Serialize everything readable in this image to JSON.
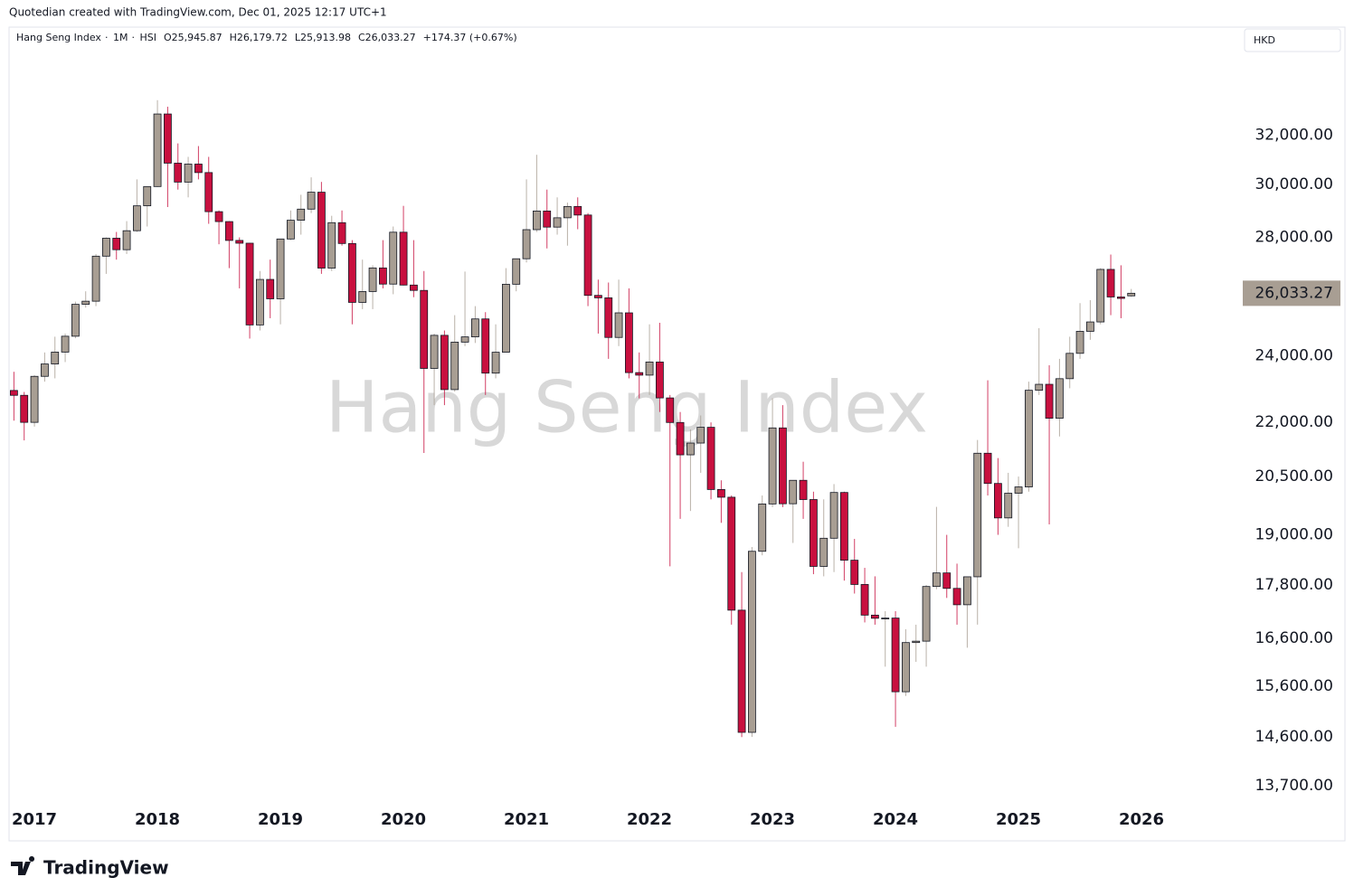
{
  "credit": "Quotedian created with TradingView.com, Dec 01, 2025 12:17 UTC+1",
  "brand": "TradingView",
  "currency": "HKD",
  "chart_data": {
    "type": "candlestick",
    "title": "Hang Seng Index",
    "interval": "1M",
    "symbol": "HSI",
    "header_values": [
      "O25,945.87",
      "H26,179.72",
      "L25,913.98",
      "C26,033.27",
      "+174.37 (+0.67%)"
    ],
    "log_scale": true,
    "up_color": "#a89e93",
    "down_color": "#c8103f",
    "ylim": [
      12750,
      36830
    ],
    "yticks": [
      {
        "value": 13700,
        "label": "13,700.00"
      },
      {
        "value": 14600,
        "label": "14,600.00"
      },
      {
        "value": 15600,
        "label": "15,600.00"
      },
      {
        "value": 16600,
        "label": "16,600.00"
      },
      {
        "value": 17800,
        "label": "17,800.00"
      },
      {
        "value": 19000,
        "label": "19,000.00"
      },
      {
        "value": 20500,
        "label": "20,500.00"
      },
      {
        "value": 22000,
        "label": "22,000.00"
      },
      {
        "value": 24000,
        "label": "24,000.00"
      },
      {
        "value": 28000,
        "label": "28,000.00"
      },
      {
        "value": 30000,
        "label": "30,000.00"
      },
      {
        "value": 32000,
        "label": "32,000.00"
      }
    ],
    "xticks": [
      2017,
      2018,
      2019,
      2020,
      2021,
      2022,
      2023,
      2024,
      2025,
      2026
    ],
    "last_label": "26,033.27",
    "open": [
      22935,
      22790,
      22001,
      23361,
      23741,
      24111,
      24615,
      25661,
      25765,
      27323,
      27970,
      27554,
      28245,
      29177,
      29919,
      32887,
      30845,
      30093,
      30808,
      30469,
      28955,
      28583,
      27889,
      27789,
      24980,
      26507,
      25846,
      27942,
      28633,
      29051,
      29699,
      26901,
      28543,
      27778,
      25725,
      26092,
      26907,
      26346,
      28190,
      26313,
      26130,
      23603,
      24644,
      22961,
      24427,
      24595,
      25177,
      23459,
      24107,
      26341,
      27231,
      28284,
      28980,
      28378,
      28725,
      29152,
      28828,
      25961,
      25879,
      24576,
      25377,
      23475,
      23398,
      23802,
      22713,
      21997,
      21089,
      21415,
      21860,
      20157,
      19955,
      17223,
      14687,
      18597,
      19781,
      21842,
      19786,
      20400,
      19895,
      18234,
      18916,
      20079,
      18382,
      17810,
      17112,
      17042,
      17047,
      15485,
      16511,
      16541,
      17763,
      18080,
      17719,
      17345,
      17989,
      21133,
      20317,
      19424,
      20060,
      20225,
      22941,
      23120,
      22119,
      23290,
      24072,
      24773,
      25078,
      26856,
      25907,
      25945.87
    ],
    "high": [
      23500,
      22890,
      23400,
      24100,
      24600,
      24700,
      25750,
      26100,
      27400,
      28000,
      28200,
      28600,
      30200,
      29900,
      33484,
      33200,
      31650,
      31100,
      31540,
      31100,
      29000,
      28600,
      28000,
      27800,
      26800,
      27200,
      27950,
      29000,
      29600,
      30280,
      30100,
      28800,
      29000,
      27900,
      27200,
      27000,
      27900,
      28400,
      29175,
      27900,
      26800,
      24700,
      24800,
      25300,
      26780,
      25600,
      25400,
      25000,
      26900,
      27200,
      30200,
      31183,
      29800,
      29500,
      29300,
      29500,
      28900,
      26500,
      26400,
      26500,
      26200,
      24100,
      25000,
      25050,
      22800,
      22300,
      21800,
      22200,
      22000,
      20400,
      20000,
      18100,
      18700,
      20000,
      22700,
      22500,
      20400,
      20900,
      20100,
      19900,
      20300,
      20100,
      18900,
      18200,
      18000,
      17200,
      17200,
      16800,
      16900,
      17800,
      19706,
      19000,
      18300,
      17900,
      21500,
      23241,
      21000,
      20600,
      20500,
      23200,
      24875,
      23700,
      23900,
      24600,
      25700,
      25800,
      26900,
      27381,
      27000,
      26179.72
    ],
    "low": [
      22050,
      21490,
      21880,
      23200,
      23300,
      23800,
      24550,
      25550,
      25600,
      26700,
      27200,
      27400,
      28200,
      28400,
      29900,
      29130,
      29800,
      29500,
      30200,
      28500,
      27750,
      26900,
      26200,
      24540,
      24800,
      25200,
      25000,
      27900,
      28100,
      28900,
      26700,
      26800,
      27700,
      25000,
      25500,
      25500,
      26200,
      26000,
      26300,
      25900,
      21139,
      22500,
      22500,
      22900,
      24300,
      24400,
      22800,
      23300,
      24100,
      26100,
      27100,
      28200,
      27600,
      28100,
      27700,
      28300,
      25600,
      24700,
      23900,
      24300,
      23300,
      22700,
      22800,
      22300,
      18235,
      19400,
      19600,
      20600,
      19900,
      19300,
      16900,
      14597,
      14600,
      18500,
      19700,
      19700,
      18800,
      19400,
      18050,
      18000,
      18100,
      17900,
      17600,
      16950,
      16900,
      16000,
      14794,
      15400,
      16100,
      16000,
      17700,
      17500,
      16900,
      16400,
      16900,
      20000,
      19000,
      19200,
      18671,
      20100,
      22800,
      19260,
      21600,
      23000,
      23900,
      24500,
      25000,
      25300,
      25200,
      25913.98
    ],
    "close": [
      22790,
      22001,
      23361,
      23741,
      24111,
      24615,
      25661,
      25765,
      27323,
      27970,
      27554,
      28245,
      29177,
      29919,
      32887,
      30845,
      30093,
      30808,
      30469,
      28955,
      28583,
      27889,
      27789,
      24980,
      26507,
      25846,
      27942,
      28633,
      29051,
      29699,
      26901,
      28543,
      27778,
      25725,
      26092,
      26907,
      26346,
      28190,
      26313,
      26130,
      23603,
      24644,
      22961,
      24427,
      24595,
      25177,
      23459,
      24107,
      26341,
      27231,
      28284,
      28980,
      28378,
      28725,
      29152,
      28828,
      25961,
      25879,
      24576,
      25377,
      23475,
      23398,
      23802,
      22713,
      21997,
      21089,
      21415,
      21860,
      20157,
      19955,
      17223,
      14687,
      18597,
      19781,
      21842,
      19786,
      20400,
      19895,
      18234,
      18916,
      20079,
      18382,
      17810,
      17112,
      17042,
      17047,
      15485,
      16511,
      16541,
      17763,
      18080,
      17719,
      17345,
      17989,
      21133,
      20317,
      19424,
      20060,
      20225,
      22941,
      23120,
      22119,
      23290,
      24072,
      24773,
      25078,
      26856,
      25907,
      25859,
      26033.27
    ]
  }
}
